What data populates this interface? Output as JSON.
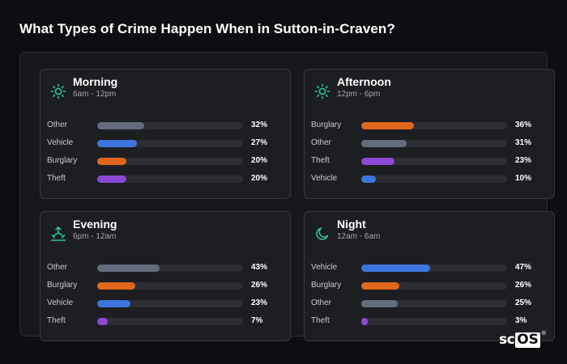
{
  "title": "What Types of Crime Happen When in Sutton-in-Craven?",
  "brand": {
    "sc": "sc",
    "os": "OS",
    "reg": "®"
  },
  "colors": {
    "Other": "#646c7d",
    "Vehicle": "#3a76dd",
    "Burglary": "#e0661d",
    "Theft": "#8d49d6",
    "icon": "#2cc491"
  },
  "cards": [
    {
      "title": "Morning",
      "subtitle": "6am - 12pm",
      "icon": "sun-icon",
      "rows": [
        {
          "label": "Other",
          "pct": "32%",
          "value": 32
        },
        {
          "label": "Vehicle",
          "pct": "27%",
          "value": 27
        },
        {
          "label": "Burglary",
          "pct": "20%",
          "value": 20
        },
        {
          "label": "Theft",
          "pct": "20%",
          "value": 20
        }
      ]
    },
    {
      "title": "Afternoon",
      "subtitle": "12pm - 6pm",
      "icon": "sun-icon",
      "rows": [
        {
          "label": "Burglary",
          "pct": "36%",
          "value": 36
        },
        {
          "label": "Other",
          "pct": "31%",
          "value": 31
        },
        {
          "label": "Theft",
          "pct": "23%",
          "value": 23
        },
        {
          "label": "Vehicle",
          "pct": "10%",
          "value": 10
        }
      ]
    },
    {
      "title": "Evening",
      "subtitle": "6pm - 12am",
      "icon": "sunset-icon",
      "rows": [
        {
          "label": "Other",
          "pct": "43%",
          "value": 43
        },
        {
          "label": "Burglary",
          "pct": "26%",
          "value": 26
        },
        {
          "label": "Vehicle",
          "pct": "23%",
          "value": 23
        },
        {
          "label": "Theft",
          "pct": "7%",
          "value": 7
        }
      ]
    },
    {
      "title": "Night",
      "subtitle": "12am - 6am",
      "icon": "moon-icon",
      "rows": [
        {
          "label": "Vehicle",
          "pct": "47%",
          "value": 47
        },
        {
          "label": "Burglary",
          "pct": "26%",
          "value": 26
        },
        {
          "label": "Other",
          "pct": "25%",
          "value": 25
        },
        {
          "label": "Theft",
          "pct": "3%",
          "value": 3
        }
      ]
    }
  ]
}
